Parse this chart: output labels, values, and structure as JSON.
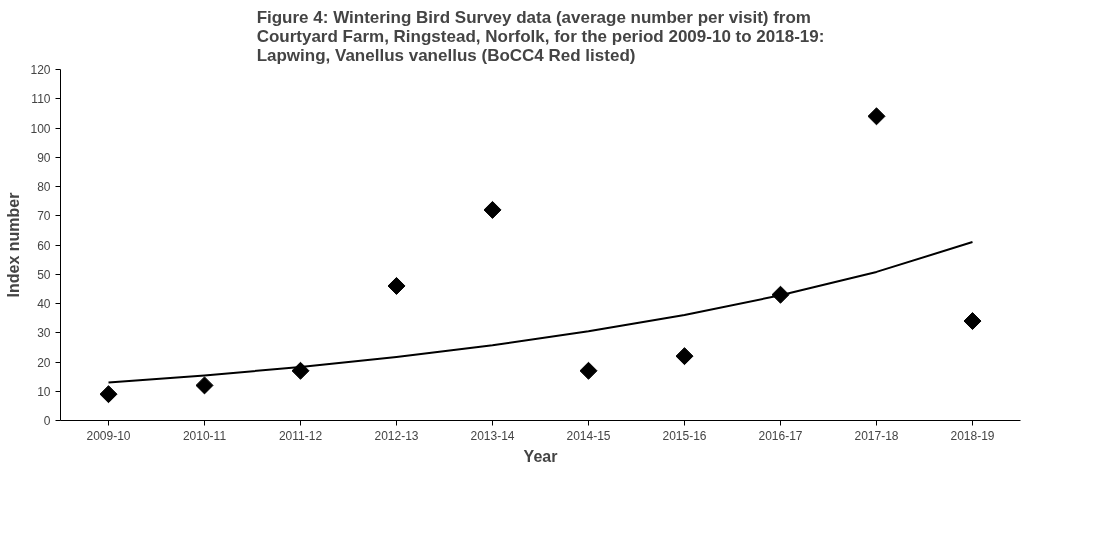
{
  "chart_data": {
    "type": "scatter",
    "title": "Figure 4: Wintering Bird Survey data (average number per visit) from\nCourtyard Farm, Ringstead, Norfolk, for the period 2009-10 to 2018-19:\nLapwing, Vanellus vanellus (BoCC4 Red listed)",
    "xlabel": "Year",
    "ylabel": "Index number",
    "categories": [
      "2009-10",
      "2010-11",
      "2011-12",
      "2012-13",
      "2013-14",
      "2014-15",
      "2015-16",
      "2016-17",
      "2017-18",
      "2018-19"
    ],
    "series": [
      {
        "color": "#000000",
        "marker": "diamond",
        "values": [
          9,
          12,
          17,
          46,
          72,
          17,
          22,
          43,
          104,
          34
        ]
      },
      {
        "type": "line",
        "color": "#000000",
        "line_style": "solid",
        "values": [
          13,
          15.4,
          18.3,
          21.7,
          25.7,
          30.5,
          36.1,
          42.8,
          50.8,
          61
        ]
      }
    ],
    "ylim": [
      0,
      120
    ],
    "yticks": [
      0,
      10,
      20,
      30,
      40,
      50,
      60,
      70,
      80,
      90,
      100,
      110,
      120
    ],
    "grid": false
  }
}
